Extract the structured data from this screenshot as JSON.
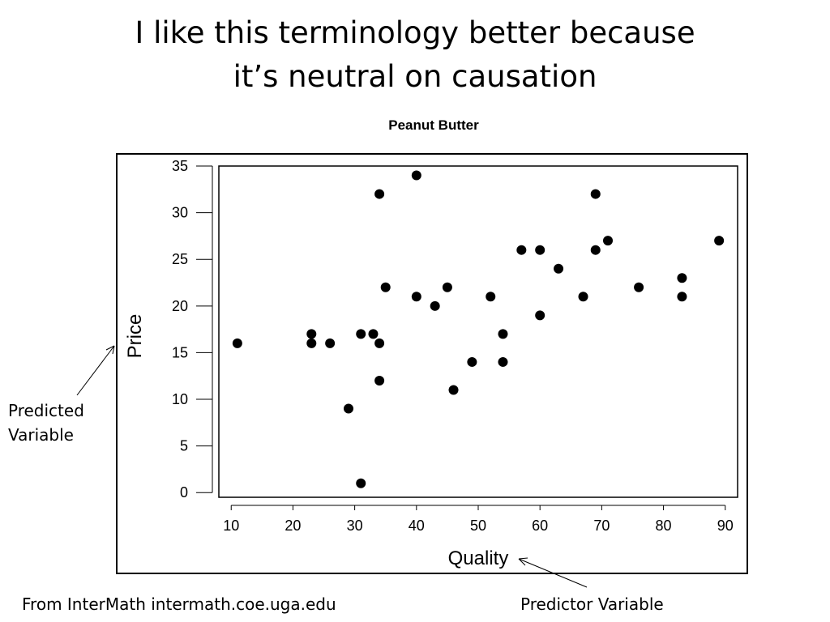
{
  "slide": {
    "title_line1": "I like this terminology better because",
    "title_line2": "it’s neutral on causation",
    "predicted_label_line1": "Predicted",
    "predicted_label_line2": "Variable",
    "predictor_label": "Predictor Variable",
    "source": "From InterMath intermath.coe.uga.edu"
  },
  "chart_data": {
    "type": "scatter",
    "title": "Peanut Butter",
    "xlabel": "Quality",
    "ylabel": "Price",
    "xlim": [
      8,
      92
    ],
    "ylim": [
      -0.5,
      35
    ],
    "xticks": [
      10,
      20,
      30,
      40,
      50,
      60,
      70,
      80,
      90
    ],
    "yticks": [
      0,
      5,
      10,
      15,
      20,
      25,
      30,
      35
    ],
    "grid": false,
    "marker_color": "#000000",
    "series": [
      {
        "points": [
          [
            11,
            16
          ],
          [
            23,
            17
          ],
          [
            23,
            16
          ],
          [
            26,
            16
          ],
          [
            29,
            9
          ],
          [
            31,
            17
          ],
          [
            31,
            1
          ],
          [
            33,
            17
          ],
          [
            34,
            32
          ],
          [
            34,
            16
          ],
          [
            34,
            12
          ],
          [
            35,
            22
          ],
          [
            40,
            34
          ],
          [
            40,
            21
          ],
          [
            43,
            20
          ],
          [
            45,
            22
          ],
          [
            46,
            11
          ],
          [
            49,
            14
          ],
          [
            52,
            21
          ],
          [
            54,
            17
          ],
          [
            54,
            14
          ],
          [
            57,
            26
          ],
          [
            60,
            26
          ],
          [
            60,
            19
          ],
          [
            63,
            24
          ],
          [
            67,
            21
          ],
          [
            69,
            32
          ],
          [
            69,
            26
          ],
          [
            71,
            27
          ],
          [
            76,
            22
          ],
          [
            83,
            23
          ],
          [
            83,
            21
          ],
          [
            89,
            27
          ]
        ]
      }
    ]
  }
}
